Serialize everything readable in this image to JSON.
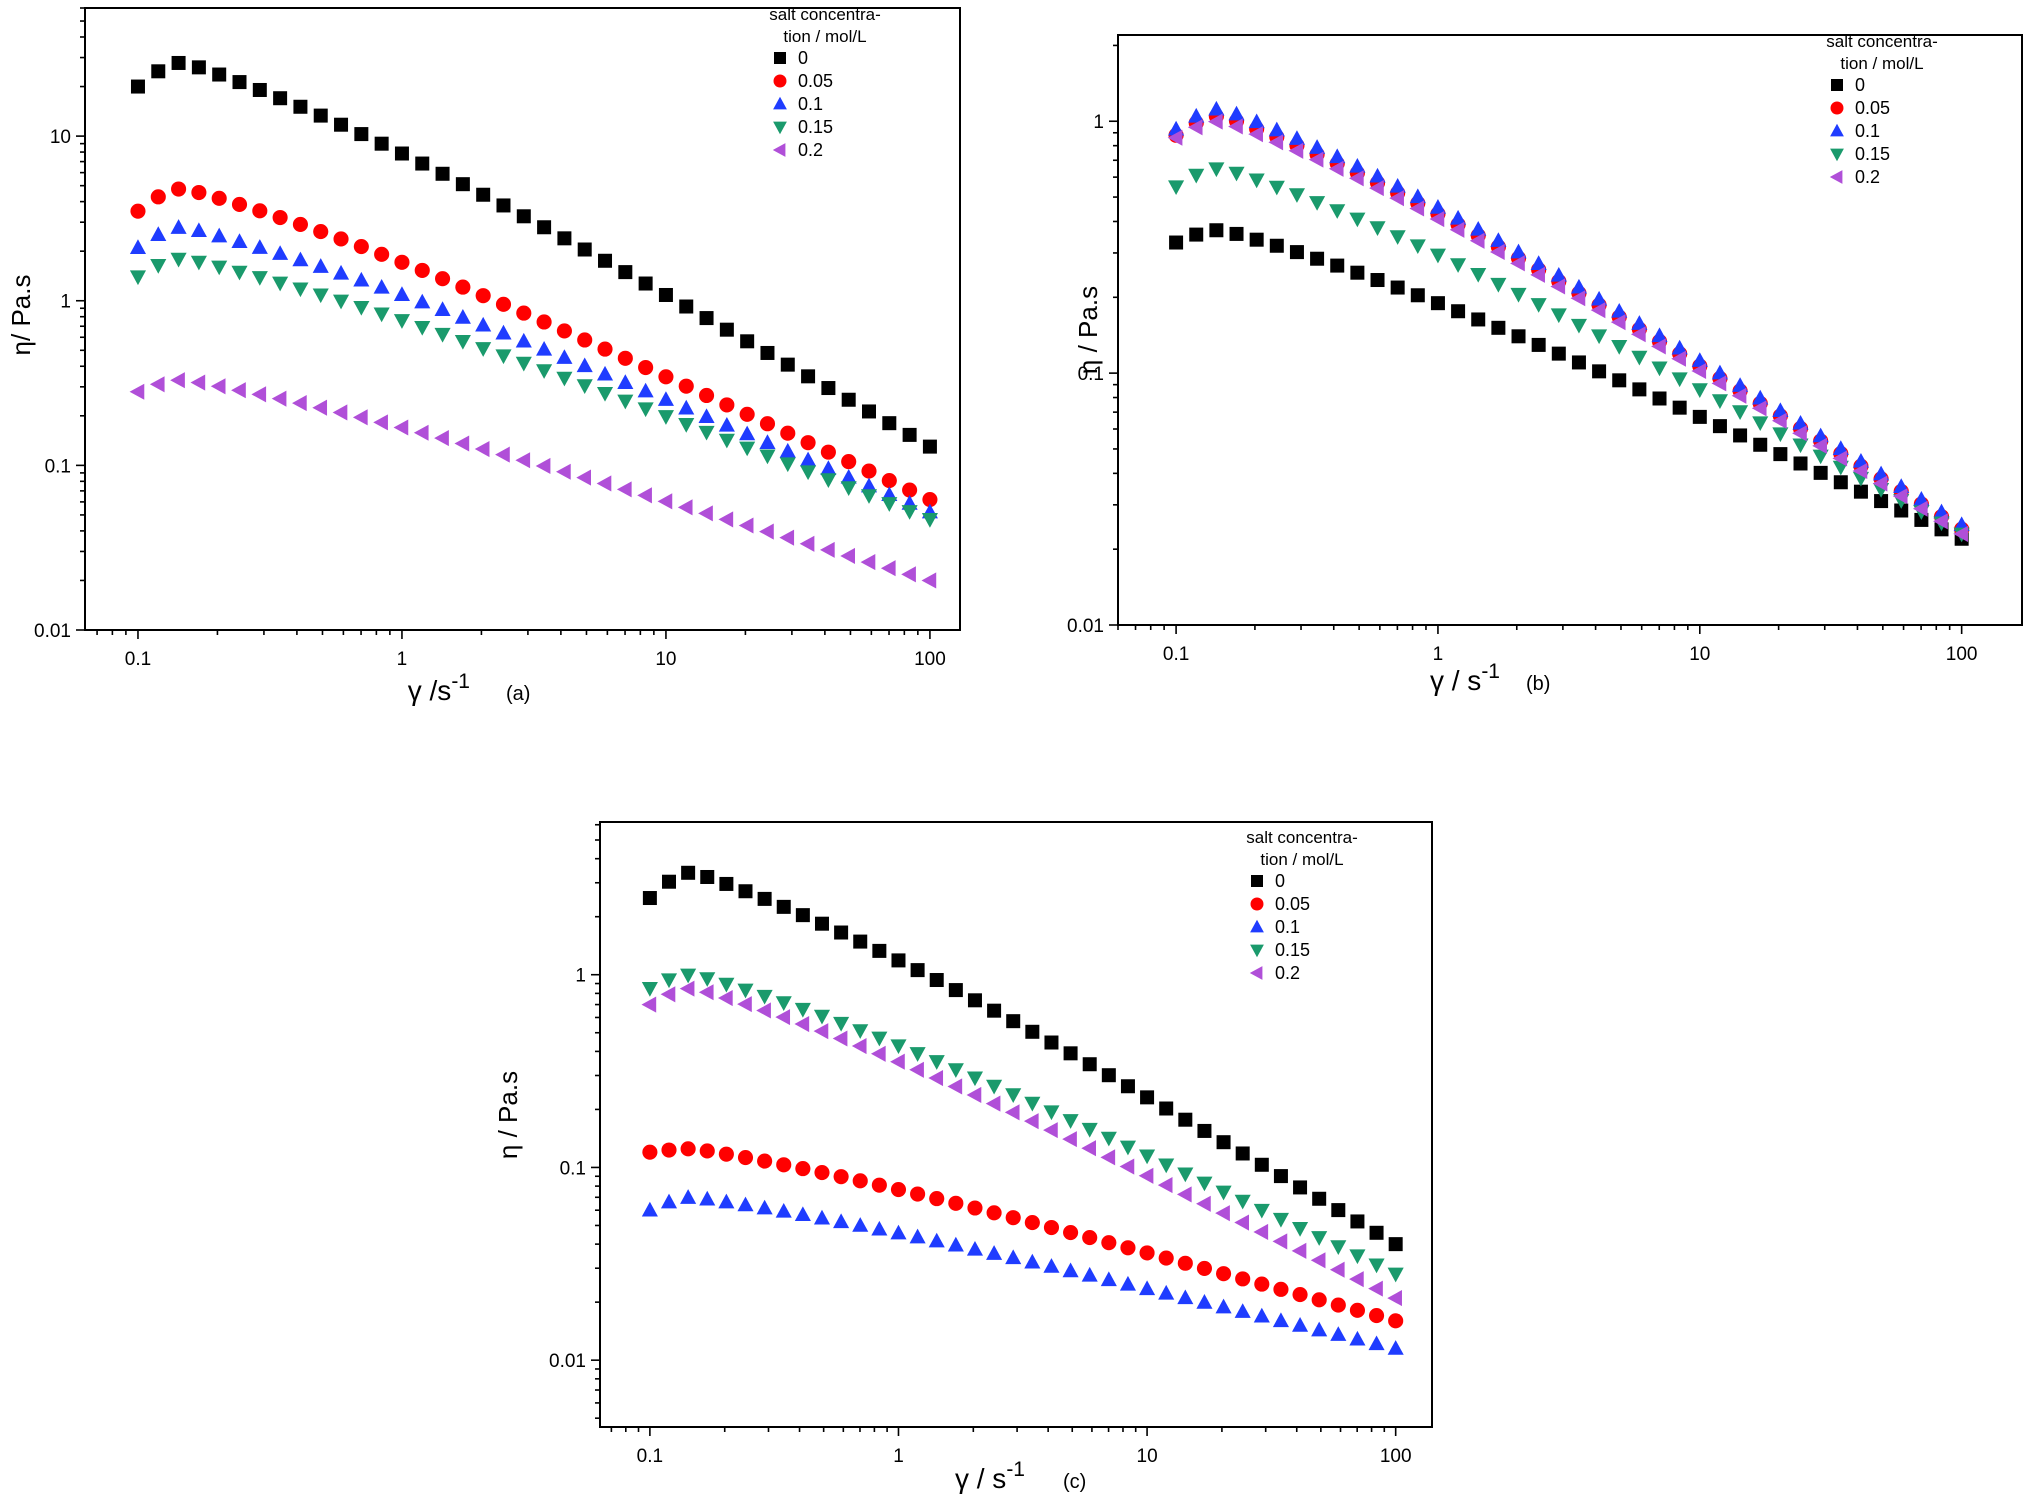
{
  "chart_data": [
    {
      "type": "scatter",
      "panel": "(a)",
      "xscale": "log",
      "yscale": "log",
      "xlim": [
        0.063,
        130
      ],
      "ylim": [
        0.01,
        60
      ],
      "xticks": [
        "0.1",
        "1",
        "10",
        "100"
      ],
      "yticks": [
        "0.01",
        "0.1",
        "1",
        "10"
      ],
      "xlabel": "γ /s",
      "xlabel_sup": "-1",
      "ylabel": "η/ Pa.s",
      "legend": {
        "title_lines": [
          "salt concentra-",
          "tion / mol/L"
        ],
        "position": "top-right"
      },
      "series": [
        {
          "name": "0",
          "marker": "square",
          "color": "#000000",
          "y0": 20,
          "ypeak": 28,
          "yend": 0.13
        },
        {
          "name": "0.05",
          "marker": "circle",
          "color": "#ff0000",
          "y0": 3.5,
          "ypeak": 4.8,
          "yend": 0.062
        },
        {
          "name": "0.1",
          "marker": "triangle-up",
          "color": "#1f3cff",
          "y0": 2.1,
          "ypeak": 2.8,
          "yend": 0.052
        },
        {
          "name": "0.15",
          "marker": "triangle-down",
          "color": "#1a9a6c",
          "y0": 1.4,
          "ypeak": 1.8,
          "yend": 0.047
        },
        {
          "name": "0.2",
          "marker": "triangle-left",
          "color": "#b04fd8",
          "y0": 0.28,
          "ypeak": 0.33,
          "yend": 0.02
        }
      ]
    },
    {
      "type": "scatter",
      "panel": "(b)",
      "xscale": "log",
      "yscale": "log",
      "xlim": [
        0.06,
        170
      ],
      "ylim": [
        0.01,
        2.2
      ],
      "xticks": [
        "0.1",
        "1",
        "10",
        "100"
      ],
      "yticks": [
        "0.01",
        "0.1",
        "1"
      ],
      "xlabel": "γ / s",
      "xlabel_sup": "-1",
      "ylabel": "η / Pa.s",
      "legend": {
        "title_lines": [
          "salt concentra-",
          "tion / mol/L"
        ],
        "position": "top-right"
      },
      "series": [
        {
          "name": "0",
          "marker": "square",
          "color": "#000000",
          "y0": 0.33,
          "ypeak": 0.37,
          "yend": 0.022
        },
        {
          "name": "0.05",
          "marker": "circle",
          "color": "#ff0000",
          "y0": 0.88,
          "ypeak": 1.05,
          "yend": 0.024
        },
        {
          "name": "0.1",
          "marker": "triangle-up",
          "color": "#1f3cff",
          "y0": 0.93,
          "ypeak": 1.12,
          "yend": 0.025
        },
        {
          "name": "0.15",
          "marker": "triangle-down",
          "color": "#1a9a6c",
          "y0": 0.55,
          "ypeak": 0.65,
          "yend": 0.023
        },
        {
          "name": "0.2",
          "marker": "triangle-left",
          "color": "#b04fd8",
          "y0": 0.86,
          "ypeak": 1.0,
          "yend": 0.023
        }
      ]
    },
    {
      "type": "scatter",
      "panel": "(c)",
      "xscale": "log",
      "yscale": "log",
      "xlim": [
        0.063,
        140
      ],
      "ylim": [
        0.0045,
        6.2
      ],
      "xticks": [
        "0.1",
        "1",
        "10",
        "100"
      ],
      "yticks": [
        "0.01",
        "0.1",
        "1"
      ],
      "xlabel": "γ / s",
      "xlabel_sup": "-1",
      "ylabel": "η / Pa.s",
      "legend": {
        "title_lines": [
          "salt concentra-",
          "tion / mol/L"
        ],
        "position": "top-right"
      },
      "series": [
        {
          "name": "0",
          "marker": "square",
          "color": "#000000",
          "y0": 2.5,
          "ypeak": 3.4,
          "yend": 0.04
        },
        {
          "name": "0.05",
          "marker": "circle",
          "color": "#ff0000",
          "y0": 0.12,
          "ypeak": 0.125,
          "yend": 0.016
        },
        {
          "name": "0.1",
          "marker": "triangle-up",
          "color": "#1f3cff",
          "y0": 0.06,
          "ypeak": 0.07,
          "yend": 0.0115
        },
        {
          "name": "0.15",
          "marker": "triangle-down",
          "color": "#1a9a6c",
          "y0": 0.85,
          "ypeak": 1.0,
          "yend": 0.028
        },
        {
          "name": "0.2",
          "marker": "triangle-left",
          "color": "#b04fd8",
          "y0": 0.7,
          "ypeak": 0.85,
          "yend": 0.021
        }
      ]
    }
  ]
}
